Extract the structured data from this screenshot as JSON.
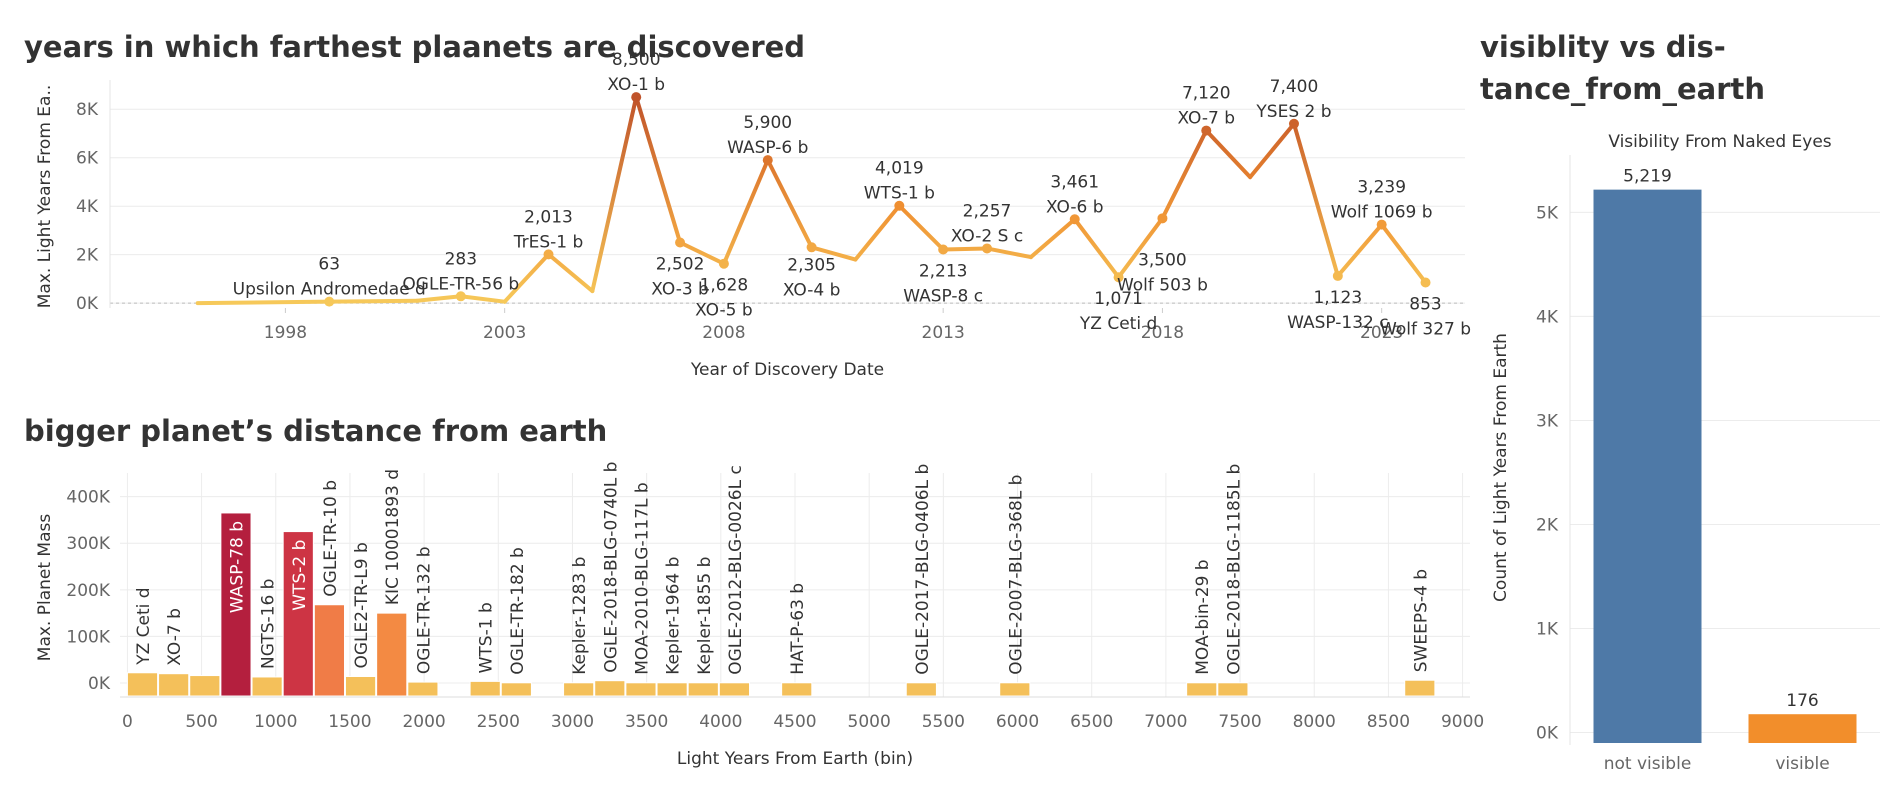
{
  "titles": {
    "line": "years in which farthest plaanets are discovered",
    "hist": "bigger planet’s distance from earth",
    "vis_line1": "visiblity vs dis-",
    "vis_line2": "tance_from_earth"
  },
  "chart_data": [
    {
      "type": "line",
      "title": "years in which farthest plaanets are discovered",
      "xlabel": "Year of Discovery Date",
      "ylabel": "Max. Light Years From Ea..",
      "xlim": [
        1994,
        2024.9
      ],
      "ylim": [
        -200,
        9000
      ],
      "xticks": [
        1998,
        2003,
        2008,
        2013,
        2018,
        2023
      ],
      "yticks": [
        {
          "v": 0,
          "label": "0K"
        },
        {
          "v": 2000,
          "label": "2K"
        },
        {
          "v": 4000,
          "label": "4K"
        },
        {
          "v": 6000,
          "label": "6K"
        },
        {
          "v": 8000,
          "label": "8K"
        }
      ],
      "colors": {
        "low": "#f6c95a",
        "mid": "#ef8c2f",
        "high": "#c0532a"
      },
      "points": [
        {
          "year": 1996,
          "value": 3,
          "label": ""
        },
        {
          "year": 1999,
          "value": 63,
          "label": "Upsilon Andromedae d",
          "value_label": "63",
          "pos": "above"
        },
        {
          "year": 2001,
          "value": 100,
          "label": "",
          "value_label": ""
        },
        {
          "year": 2002,
          "value": 283,
          "label": "OGLE-TR-56 b",
          "value_label": "283",
          "pos": "above"
        },
        {
          "year": 2003,
          "value": 60,
          "label": "",
          "value_label": ""
        },
        {
          "year": 2004,
          "value": 2013,
          "label": "TrES-1 b",
          "value_label": "2,013",
          "pos": "above"
        },
        {
          "year": 2005,
          "value": 500,
          "label": "",
          "value_label": ""
        },
        {
          "year": 2006,
          "value": 8500,
          "label": "XO-1 b",
          "value_label": "8,500",
          "pos": "above"
        },
        {
          "year": 2007,
          "value": 2502,
          "label": "XO-3 b",
          "value_label": "2,502",
          "pos": "below"
        },
        {
          "year": 2008,
          "value": 1628,
          "label": "XO-5 b",
          "value_label": "1,628",
          "pos": "below"
        },
        {
          "year": 2009,
          "value": 5900,
          "label": "WASP-6 b",
          "value_label": "5,900",
          "pos": "above"
        },
        {
          "year": 2010,
          "value": 2305,
          "label": "XO-4 b",
          "value_label": "2,305",
          "pos": "below2"
        },
        {
          "year": 2011,
          "value": 1800,
          "label": "",
          "value_label": ""
        },
        {
          "year": 2012,
          "value": 4019,
          "label": "WTS-1 b",
          "value_label": "4,019",
          "pos": "above"
        },
        {
          "year": 2013,
          "value": 2213,
          "label": "WASP-8 c",
          "value_label": "2,213",
          "pos": "below"
        },
        {
          "year": 2014,
          "value": 2257,
          "label": "XO-2 S c",
          "value_label": "2,257",
          "pos": "above"
        },
        {
          "year": 2015,
          "value": 1900,
          "label": "",
          "value_label": ""
        },
        {
          "year": 2016,
          "value": 3461,
          "label": "XO-6 b",
          "value_label": "3,461",
          "pos": "above"
        },
        {
          "year": 2017,
          "value": 1071,
          "label": "YZ Ceti d",
          "value_label": "1,071",
          "pos": "below"
        },
        {
          "year": 2018,
          "value": 3500,
          "label": "Wolf 503 b",
          "value_label": "3,500",
          "pos": "below_far"
        },
        {
          "year": 2019,
          "value": 7120,
          "label": "XO-7 b",
          "value_label": "7,120",
          "pos": "above"
        },
        {
          "year": 2020,
          "value": 5200,
          "label": "",
          "value_label": ""
        },
        {
          "year": 2021,
          "value": 7400,
          "label": "YSES 2 b",
          "value_label": "7,400",
          "pos": "above"
        },
        {
          "year": 2022,
          "value": 1123,
          "label": "WASP-132 c",
          "value_label": "1,123",
          "pos": "below"
        },
        {
          "year": 2023,
          "value": 3239,
          "label": "Wolf 1069 b",
          "value_label": "3,239",
          "pos": "above"
        },
        {
          "year": 2024,
          "value": 853,
          "label": "Wolf 327 b",
          "value_label": "853",
          "pos": "below"
        }
      ]
    },
    {
      "type": "bar",
      "title": "bigger planet’s distance from earth",
      "xlabel": "Light Years From Earth (bin)",
      "ylabel": "Max. Planet Mass",
      "bin_width": 210,
      "xlim": [
        -50,
        9050
      ],
      "ylim": [
        -30000,
        440000
      ],
      "xticks": [
        0,
        500,
        1000,
        1500,
        2000,
        2500,
        3000,
        3500,
        4000,
        4500,
        5000,
        5500,
        6000,
        6500,
        7000,
        7500,
        8000,
        8500,
        9000
      ],
      "yticks": [
        {
          "v": 0,
          "label": "0K"
        },
        {
          "v": 100000,
          "label": "100K"
        },
        {
          "v": 200000,
          "label": "200K"
        },
        {
          "v": 300000,
          "label": "300K"
        },
        {
          "v": 400000,
          "label": "400K"
        }
      ],
      "bars": [
        {
          "bin": 0,
          "value": 22000,
          "label": "YZ Ceti d",
          "color": "#f4c05a"
        },
        {
          "bin": 210,
          "value": 20000,
          "label": "XO-7 b",
          "color": "#f4c05a"
        },
        {
          "bin": 420,
          "value": 16000,
          "label": "",
          "color": "#f4c05a"
        },
        {
          "bin": 630,
          "value": 365000,
          "label": "WASP-78 b",
          "color": "#b41f3e"
        },
        {
          "bin": 840,
          "value": 13000,
          "label": "NGTS-16 b",
          "color": "#f4c05a"
        },
        {
          "bin": 1050,
          "value": 325000,
          "label": "WTS-2 b",
          "color": "#cd3444"
        },
        {
          "bin": 1260,
          "value": 168000,
          "label": "OGLE-TR-10 b",
          "color": "#f07c47"
        },
        {
          "bin": 1470,
          "value": 14000,
          "label": "OGLE2-TR-L9 b",
          "color": "#f4c05a"
        },
        {
          "bin": 1680,
          "value": 150000,
          "label": "KIC 10001893 d",
          "color": "#f38a43"
        },
        {
          "bin": 1890,
          "value": 2000,
          "label": "OGLE-TR-132 b",
          "color": "#f4c05a"
        },
        {
          "bin": 2310,
          "value": 3500,
          "label": "WTS-1 b",
          "color": "#f4c05a"
        },
        {
          "bin": 2520,
          "value": 500,
          "label": "OGLE-TR-182 b",
          "color": "#f4c05a"
        },
        {
          "bin": 2940,
          "value": 500,
          "label": "Kepler-1283 b",
          "color": "#f4c05a"
        },
        {
          "bin": 3150,
          "value": 5000,
          "label": "OGLE-2018-BLG-0740L b",
          "color": "#f4c05a"
        },
        {
          "bin": 3360,
          "value": 500,
          "label": "MOA-2010-BLG-117L b",
          "color": "#f4c05a"
        },
        {
          "bin": 3570,
          "value": 500,
          "label": "Kepler-1964 b",
          "color": "#f4c05a"
        },
        {
          "bin": 3780,
          "value": 500,
          "label": "Kepler-1855 b",
          "color": "#f4c05a"
        },
        {
          "bin": 3990,
          "value": 500,
          "label": "OGLE-2012-BLG-0026L c",
          "color": "#f4c05a"
        },
        {
          "bin": 4410,
          "value": 500,
          "label": "HAT-P-63 b",
          "color": "#f4c05a"
        },
        {
          "bin": 5250,
          "value": 500,
          "label": "OGLE-2017-BLG-0406L b",
          "color": "#f4c05a"
        },
        {
          "bin": 5880,
          "value": 500,
          "label": "OGLE-2007-BLG-368L b",
          "color": "#f4c05a"
        },
        {
          "bin": 7140,
          "value": 500,
          "label": "MOA-bin-29 b",
          "color": "#f4c05a"
        },
        {
          "bin": 7350,
          "value": 500,
          "label": "OGLE-2018-BLG-1185L b",
          "color": "#f4c05a"
        },
        {
          "bin": 8610,
          "value": 6000,
          "label": "SWEEPS-4 b",
          "color": "#f4c05a"
        }
      ]
    },
    {
      "type": "bar",
      "title": "Visibility From Naked Eyes",
      "xlabel": "",
      "ylabel": "Count of Light Years From Earth",
      "ylim": [
        -120,
        5600
      ],
      "yticks": [
        {
          "v": 0,
          "label": "0K"
        },
        {
          "v": 1000,
          "label": "1K"
        },
        {
          "v": 2000,
          "label": "2K"
        },
        {
          "v": 3000,
          "label": "3K"
        },
        {
          "v": 4000,
          "label": "4K"
        },
        {
          "v": 5000,
          "label": "5K"
        }
      ],
      "categories": [
        "not visible",
        "visible"
      ],
      "values": [
        5219,
        176
      ],
      "value_labels": [
        "5,219",
        "176"
      ],
      "colors": [
        "#4e79a7",
        "#f28e2b"
      ]
    }
  ]
}
